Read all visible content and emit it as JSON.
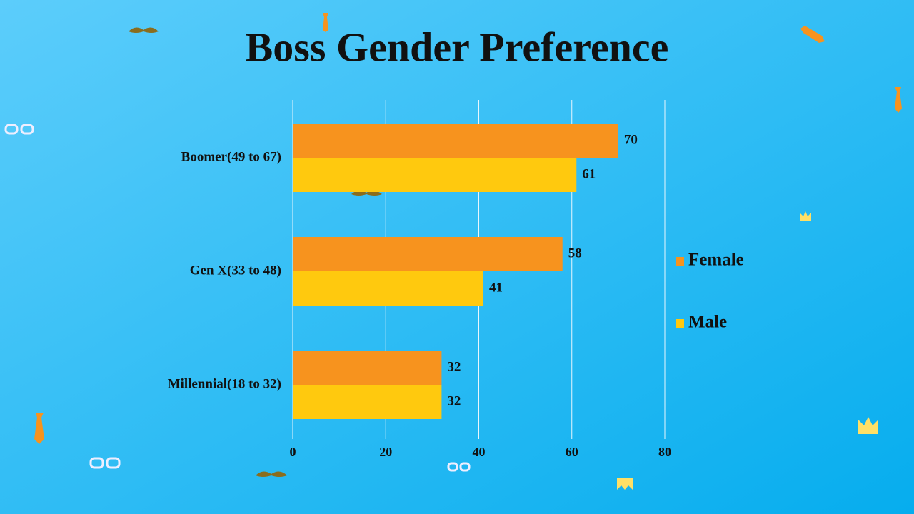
{
  "chart_data": {
    "type": "bar",
    "orientation": "horizontal",
    "title": "Boss Gender Preference",
    "categories": [
      "Boomer(49 to 67)",
      "Gen X(33 to 48)",
      "Millennial(18 to 32)"
    ],
    "series": [
      {
        "name": "Female",
        "color": "#F7931E",
        "values": [
          70,
          58,
          32
        ]
      },
      {
        "name": "Male",
        "color": "#FFC90E",
        "values": [
          61,
          41,
          32
        ]
      }
    ],
    "xlim": [
      0,
      80
    ],
    "xticks": [
      0,
      20,
      40,
      60,
      80
    ],
    "grid": true,
    "legend": "right"
  }
}
